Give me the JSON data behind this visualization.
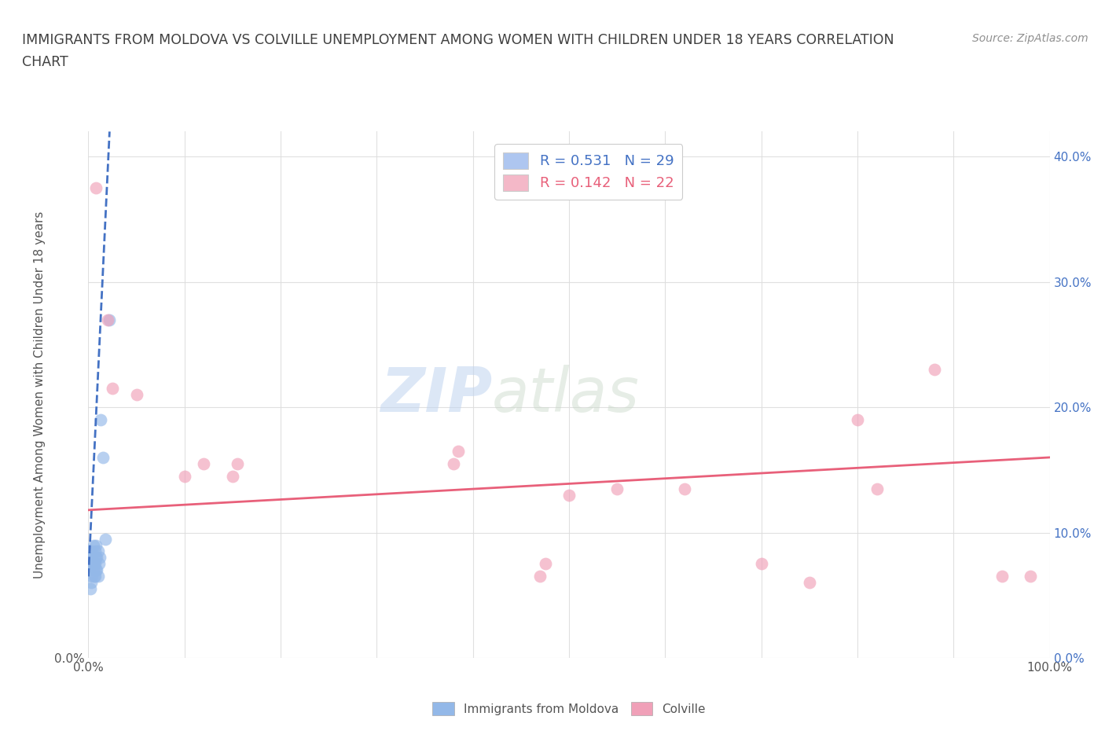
{
  "title_line1": "IMMIGRANTS FROM MOLDOVA VS COLVILLE UNEMPLOYMENT AMONG WOMEN WITH CHILDREN UNDER 18 YEARS CORRELATION",
  "title_line2": "CHART",
  "source": "Source: ZipAtlas.com",
  "ylabel": "Unemployment Among Women with Children Under 18 years",
  "xmin": 0.0,
  "xmax": 1.0,
  "ymin": 0.0,
  "ymax": 0.42,
  "xticks": [
    0.0,
    0.1,
    0.2,
    0.3,
    0.4,
    0.5,
    0.6,
    0.7,
    0.8,
    0.9,
    1.0
  ],
  "xticklabels_left": [
    "0.0%",
    "",
    "",
    "",
    "",
    "",
    "",
    "",
    "",
    "",
    "100.0%"
  ],
  "yticks": [
    0.0,
    0.1,
    0.2,
    0.3,
    0.4
  ],
  "yticklabels_left": [
    "0.0%",
    "",
    "",
    "",
    ""
  ],
  "yticklabels_right": [
    "0.0%",
    "10.0%",
    "20.0%",
    "30.0%",
    "40.0%"
  ],
  "legend_entries": [
    {
      "label": "R = 0.531   N = 29",
      "color": "#aec6f0",
      "text_color": "#4472c4"
    },
    {
      "label": "R = 0.142   N = 22",
      "color": "#f4b8c8",
      "text_color": "#e8607a"
    }
  ],
  "legend_labels_bottom": [
    "Immigrants from Moldova",
    "Colville"
  ],
  "watermark_zip": "ZIP",
  "watermark_atlas": "atlas",
  "blue_scatter_x": [
    0.001,
    0.002,
    0.002,
    0.003,
    0.003,
    0.003,
    0.004,
    0.004,
    0.005,
    0.005,
    0.005,
    0.006,
    0.006,
    0.007,
    0.007,
    0.007,
    0.008,
    0.008,
    0.008,
    0.009,
    0.009,
    0.01,
    0.01,
    0.011,
    0.012,
    0.013,
    0.015,
    0.018,
    0.022
  ],
  "blue_scatter_y": [
    0.07,
    0.055,
    0.08,
    0.06,
    0.075,
    0.085,
    0.065,
    0.08,
    0.07,
    0.075,
    0.09,
    0.065,
    0.075,
    0.065,
    0.075,
    0.085,
    0.07,
    0.08,
    0.09,
    0.07,
    0.08,
    0.065,
    0.085,
    0.075,
    0.08,
    0.19,
    0.16,
    0.095,
    0.27
  ],
  "pink_scatter_x": [
    0.008,
    0.02,
    0.025,
    0.05,
    0.1,
    0.12,
    0.15,
    0.155,
    0.38,
    0.385,
    0.47,
    0.475,
    0.5,
    0.55,
    0.62,
    0.7,
    0.75,
    0.8,
    0.82,
    0.88,
    0.95,
    0.98
  ],
  "pink_scatter_y": [
    0.375,
    0.27,
    0.215,
    0.21,
    0.145,
    0.155,
    0.145,
    0.155,
    0.155,
    0.165,
    0.065,
    0.075,
    0.13,
    0.135,
    0.135,
    0.075,
    0.06,
    0.19,
    0.135,
    0.23,
    0.065,
    0.065
  ],
  "blue_line_x": [
    0.0,
    0.022
  ],
  "blue_line_y": [
    0.065,
    0.42
  ],
  "pink_line_x": [
    0.0,
    1.0
  ],
  "pink_line_y": [
    0.118,
    0.16
  ],
  "blue_scatter_color": "#93b8e8",
  "pink_scatter_color": "#f0a0b8",
  "blue_line_color": "#4472c4",
  "pink_line_color": "#e8607a",
  "background_color": "#ffffff",
  "grid_color": "#dddddd",
  "title_color": "#404040",
  "source_color": "#909090",
  "tick_color_left": "#555555",
  "tick_color_right": "#4472c4"
}
